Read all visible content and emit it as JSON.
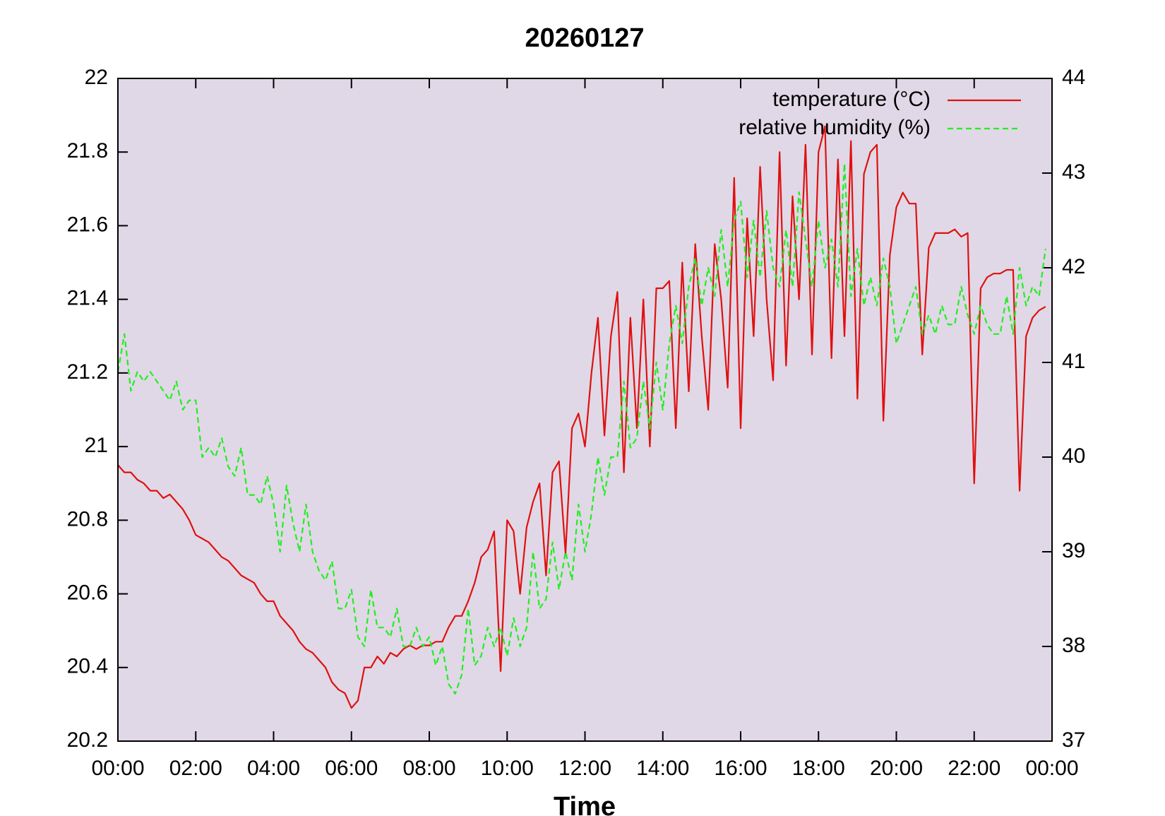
{
  "chart_data": {
    "type": "line",
    "title": "20260127",
    "xlabel": "Time",
    "x": [
      0,
      10,
      20,
      30,
      40,
      50,
      60,
      70,
      80,
      90,
      100,
      110,
      120,
      130,
      140,
      150,
      160,
      170,
      180,
      190,
      200,
      210,
      220,
      230,
      240,
      250,
      260,
      270,
      280,
      290,
      300,
      310,
      320,
      330,
      340,
      350,
      360,
      370,
      380,
      390,
      400,
      410,
      420,
      430,
      440,
      450,
      460,
      470,
      480,
      490,
      500,
      510,
      520,
      530,
      540,
      550,
      560,
      570,
      580,
      590,
      600,
      610,
      620,
      630,
      640,
      650,
      660,
      670,
      680,
      690,
      700,
      710,
      720,
      730,
      740,
      750,
      760,
      770,
      780,
      790,
      800,
      810,
      820,
      830,
      840,
      850,
      860,
      870,
      880,
      890,
      900,
      910,
      920,
      930,
      940,
      950,
      960,
      970,
      980,
      990,
      1000,
      1010,
      1020,
      1030,
      1040,
      1050,
      1060,
      1070,
      1080,
      1090,
      1100,
      1110,
      1120,
      1130,
      1140,
      1150,
      1160,
      1170,
      1180,
      1190,
      1200,
      1210,
      1220,
      1230,
      1240,
      1250,
      1260,
      1270,
      1280,
      1290,
      1300,
      1310,
      1320,
      1330,
      1340,
      1350,
      1360,
      1370,
      1380,
      1390,
      1400,
      1410,
      1420,
      1430
    ],
    "series": [
      {
        "name": "temperature (°C)",
        "color": "#e01010",
        "dash": false,
        "axis": "y",
        "values": [
          20.95,
          20.93,
          20.93,
          20.91,
          20.9,
          20.88,
          20.88,
          20.86,
          20.87,
          20.85,
          20.83,
          20.8,
          20.76,
          20.75,
          20.74,
          20.72,
          20.7,
          20.69,
          20.67,
          20.65,
          20.64,
          20.63,
          20.6,
          20.58,
          20.58,
          20.54,
          20.52,
          20.5,
          20.47,
          20.45,
          20.44,
          20.42,
          20.4,
          20.36,
          20.34,
          20.33,
          20.29,
          20.31,
          20.4,
          20.4,
          20.43,
          20.41,
          20.44,
          20.43,
          20.45,
          20.46,
          20.45,
          20.46,
          20.46,
          20.47,
          20.47,
          20.51,
          20.54,
          20.54,
          20.58,
          20.63,
          20.7,
          20.72,
          20.77,
          20.39,
          20.8,
          20.77,
          20.6,
          20.78,
          20.85,
          20.9,
          20.65,
          20.93,
          20.96,
          20.71,
          21.05,
          21.09,
          21.0,
          21.2,
          21.35,
          21.03,
          21.3,
          21.42,
          20.93,
          21.35,
          21.05,
          21.4,
          21.0,
          21.43,
          21.43,
          21.45,
          21.05,
          21.5,
          21.15,
          21.55,
          21.3,
          21.1,
          21.55,
          21.4,
          21.16,
          21.73,
          21.05,
          21.62,
          21.3,
          21.76,
          21.4,
          21.18,
          21.8,
          21.22,
          21.68,
          21.4,
          21.82,
          21.25,
          21.8,
          21.87,
          21.24,
          21.78,
          21.3,
          21.83,
          21.13,
          21.74,
          21.8,
          21.82,
          21.07,
          21.52,
          21.65,
          21.69,
          21.66,
          21.66,
          21.25,
          21.54,
          21.58,
          21.58,
          21.58,
          21.59,
          21.57,
          21.58,
          20.9,
          21.43,
          21.46,
          21.47,
          21.47,
          21.48,
          21.48,
          20.88,
          21.3,
          21.35,
          21.37,
          21.38
        ]
      },
      {
        "name": "relative humidity (%)",
        "color": "#22ee22",
        "dash": true,
        "axis": "y2",
        "values": [
          40.9,
          41.3,
          40.7,
          40.9,
          40.8,
          40.9,
          40.8,
          40.7,
          40.6,
          40.8,
          40.5,
          40.6,
          40.6,
          40.0,
          40.1,
          40.0,
          40.2,
          39.9,
          39.8,
          40.1,
          39.6,
          39.6,
          39.5,
          39.8,
          39.5,
          39.0,
          39.7,
          39.3,
          39.0,
          39.5,
          39.0,
          38.8,
          38.7,
          38.9,
          38.4,
          38.4,
          38.6,
          38.1,
          38.0,
          38.6,
          38.2,
          38.2,
          38.1,
          38.4,
          38.0,
          38.0,
          38.2,
          38.0,
          38.1,
          37.8,
          38.0,
          37.6,
          37.5,
          37.7,
          38.4,
          37.8,
          37.9,
          38.2,
          38.0,
          38.2,
          37.9,
          38.3,
          38.0,
          38.2,
          39.0,
          38.4,
          38.5,
          39.1,
          38.6,
          39.0,
          38.7,
          39.5,
          39.0,
          39.4,
          40.0,
          39.6,
          40.0,
          40.0,
          40.8,
          40.1,
          40.2,
          40.8,
          40.3,
          41.0,
          40.5,
          41.2,
          41.6,
          41.2,
          41.8,
          42.1,
          41.6,
          42.0,
          41.7,
          42.4,
          41.8,
          42.5,
          42.7,
          41.9,
          42.5,
          41.9,
          42.6,
          42.0,
          41.8,
          42.4,
          41.8,
          42.8,
          42.3,
          41.8,
          42.5,
          42.0,
          42.3,
          41.8,
          43.1,
          41.7,
          42.2,
          41.6,
          41.9,
          41.6,
          42.1,
          41.8,
          41.2,
          41.4,
          41.6,
          41.8,
          41.3,
          41.5,
          41.3,
          41.6,
          41.4,
          41.4,
          41.8,
          41.5,
          41.3,
          41.6,
          41.4,
          41.3,
          41.3,
          41.7,
          41.3,
          42.0,
          41.6,
          41.8,
          41.7,
          42.2
        ]
      }
    ],
    "xlim": [
      0,
      1440
    ],
    "xticks": [
      {
        "value": 0,
        "label": "00:00"
      },
      {
        "value": 120,
        "label": "02:00"
      },
      {
        "value": 240,
        "label": "04:00"
      },
      {
        "value": 360,
        "label": "06:00"
      },
      {
        "value": 480,
        "label": "08:00"
      },
      {
        "value": 600,
        "label": "10:00"
      },
      {
        "value": 720,
        "label": "12:00"
      },
      {
        "value": 840,
        "label": "14:00"
      },
      {
        "value": 960,
        "label": "16:00"
      },
      {
        "value": 1080,
        "label": "18:00"
      },
      {
        "value": 1200,
        "label": "20:00"
      },
      {
        "value": 1320,
        "label": "22:00"
      },
      {
        "value": 1440,
        "label": "00:00"
      }
    ],
    "ylim": [
      20.2,
      22
    ],
    "yticks": [
      20.2,
      20.4,
      20.6,
      20.8,
      21,
      21.2,
      21.4,
      21.6,
      21.8,
      22
    ],
    "y2lim": [
      37,
      44
    ],
    "y2ticks": [
      37,
      38,
      39,
      40,
      41,
      42,
      43,
      44
    ],
    "background": "#e0d8e6",
    "legend": "top right"
  }
}
